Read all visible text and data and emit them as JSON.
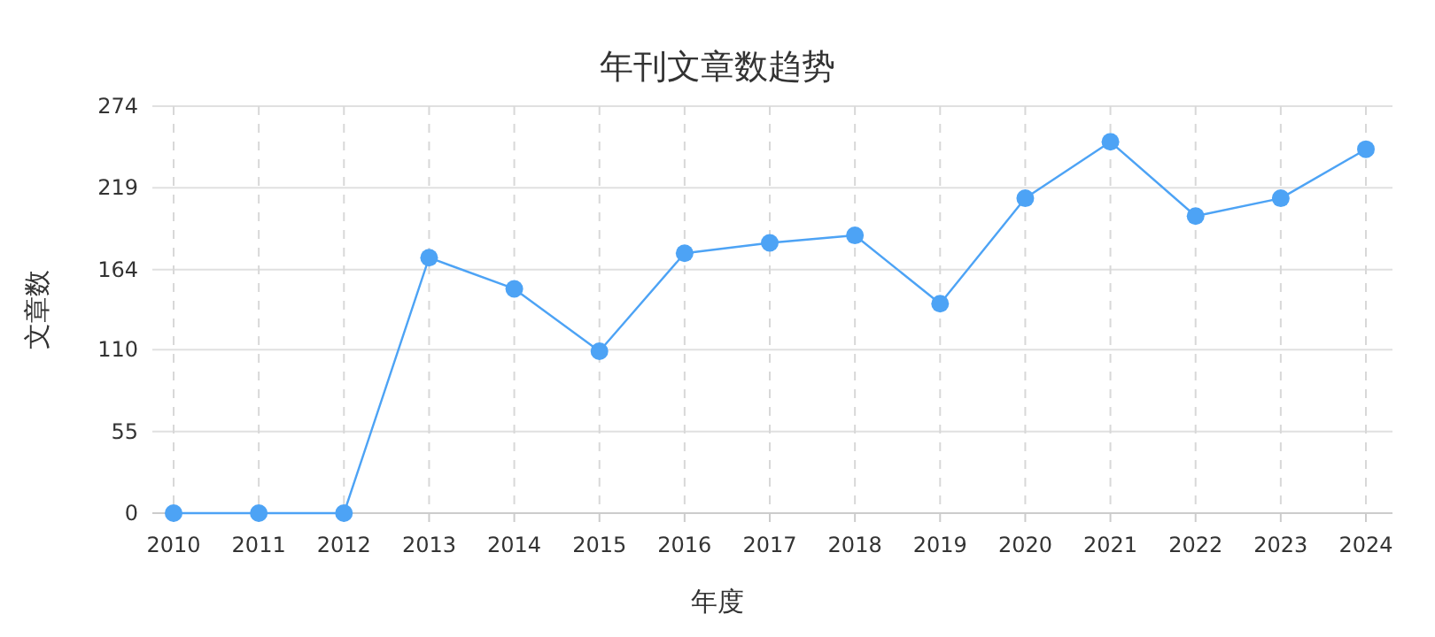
{
  "chart_data": {
    "type": "line",
    "title": "年刊文章数趋势",
    "xlabel": "年度",
    "ylabel": "文章数",
    "categories": [
      "2010",
      "2011",
      "2012",
      "2013",
      "2014",
      "2015",
      "2016",
      "2017",
      "2018",
      "2019",
      "2020",
      "2021",
      "2022",
      "2023",
      "2024"
    ],
    "series": [
      {
        "color": "#4da3f5",
        "values": [
          0,
          0,
          0,
          172,
          151,
          109,
          175,
          182,
          187,
          141,
          212,
          250,
          200,
          212,
          245
        ]
      }
    ],
    "ylim": [
      0,
      274
    ],
    "yticks": [
      0,
      55,
      110,
      164,
      219,
      274
    ],
    "grid": true,
    "marker": "circle",
    "line_style": "solid"
  }
}
